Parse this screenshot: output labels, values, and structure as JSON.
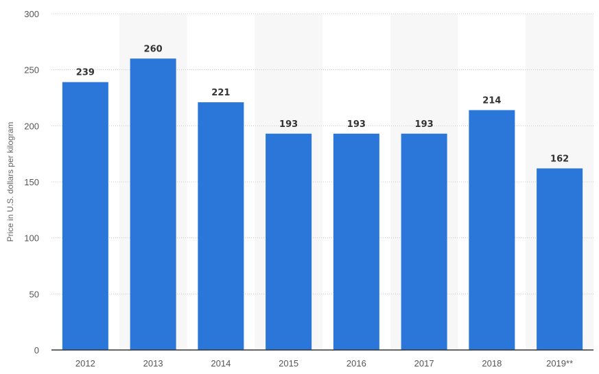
{
  "chart_data": {
    "type": "bar",
    "categories": [
      "2012",
      "2013",
      "2014",
      "2015",
      "2016",
      "2017",
      "2018",
      "2019**"
    ],
    "values": [
      239,
      260,
      221,
      193,
      193,
      193,
      214,
      162
    ],
    "ylabel": "Price in U.S. dollars per kilogram",
    "ylim": [
      0,
      300
    ],
    "yticks": [
      0,
      50,
      100,
      150,
      200,
      250,
      300
    ],
    "grid": true,
    "bar_color": "#2a76d9",
    "band_color": "#f7f7f7"
  }
}
